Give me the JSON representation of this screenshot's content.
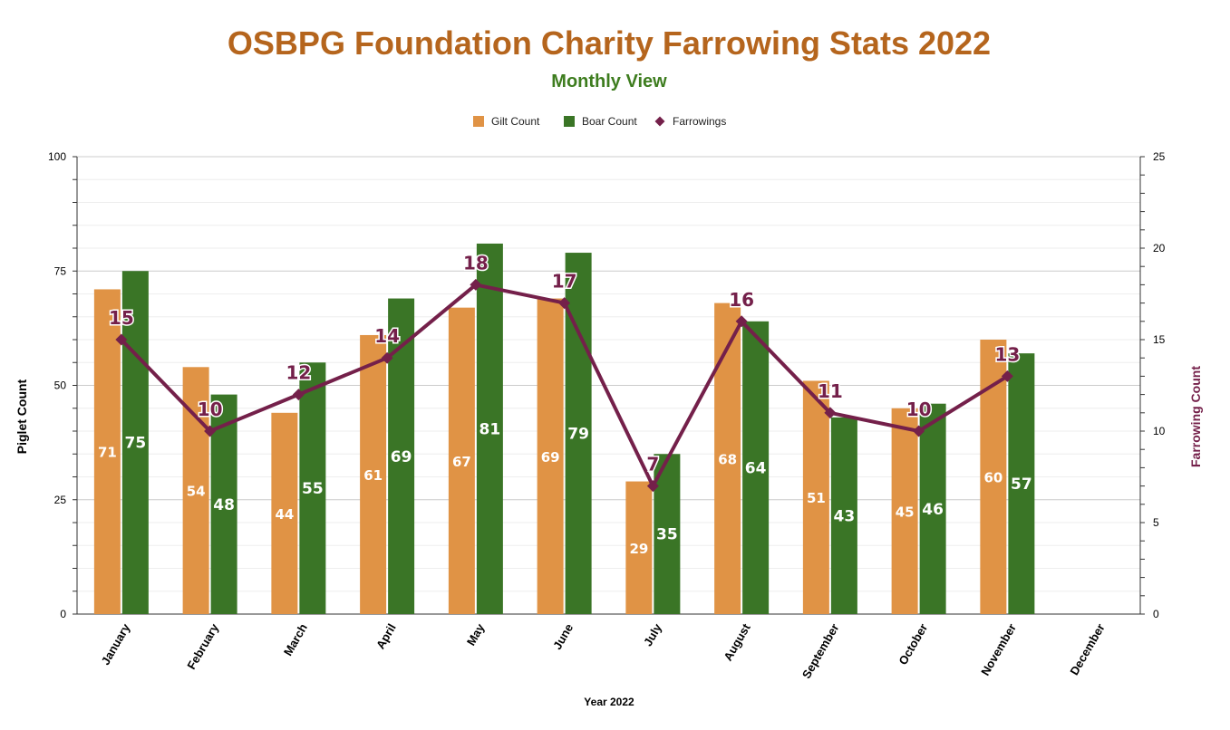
{
  "chart_data": {
    "type": "bar",
    "title": "OSBPG Foundation Charity Farrowing Stats 2022",
    "subtitle": "Monthly View",
    "xlabel": "Year 2022",
    "ylabel": "Piglet Count",
    "y2label": "Farrowing Count",
    "ylim": [
      0,
      100
    ],
    "y2lim": [
      0,
      25
    ],
    "yticks": [
      0,
      25,
      50,
      75,
      100
    ],
    "y2ticks": [
      0,
      5,
      10,
      15,
      20,
      25
    ],
    "grid": true,
    "legend_position": "top",
    "categories": [
      "January",
      "February",
      "March",
      "April",
      "May",
      "June",
      "July",
      "August",
      "September",
      "October",
      "November",
      "December"
    ],
    "series": [
      {
        "name": "Gilt Count",
        "type": "bar",
        "axis": "left",
        "color": "#E09345",
        "values": [
          71,
          54,
          44,
          61,
          67,
          69,
          29,
          68,
          51,
          45,
          60,
          null
        ]
      },
      {
        "name": "Boar Count",
        "type": "bar",
        "axis": "left",
        "color": "#3A7526",
        "values": [
          75,
          48,
          55,
          69,
          81,
          79,
          35,
          64,
          43,
          46,
          57,
          null
        ]
      },
      {
        "name": "Farrowings",
        "type": "line",
        "axis": "right",
        "color": "#74204A",
        "values": [
          15,
          10,
          12,
          14,
          18,
          17,
          7,
          16,
          11,
          10,
          13,
          null
        ]
      }
    ],
    "colors": {
      "title": "#B5651D",
      "subtitle": "#3E7D1F",
      "y2label": "#74204A"
    }
  }
}
